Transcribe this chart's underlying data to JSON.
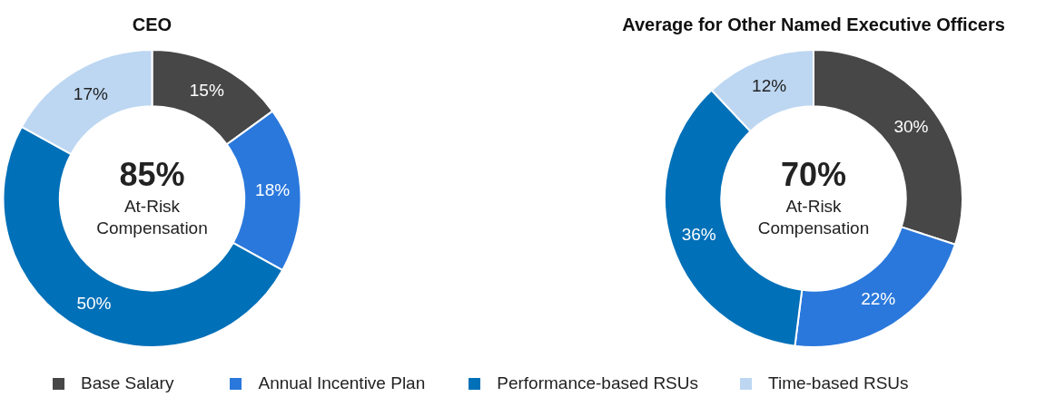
{
  "chart_data": [
    {
      "type": "donut",
      "title": "CEO",
      "categories": [
        "Base Salary",
        "Annual Incentive Plan",
        "Performance-based RSUs",
        "Time-based RSUs"
      ],
      "values": [
        15,
        18,
        50,
        17
      ],
      "value_labels": [
        "15%",
        "18%",
        "50%",
        "17%"
      ],
      "colors": [
        "#474747",
        "#2a78dc",
        "#0070b8",
        "#bdd7f2"
      ],
      "legend": "bottom",
      "annotations": [
        "85%",
        "At-Risk",
        "Compensation"
      ]
    },
    {
      "type": "donut",
      "title": "Average for Other Named Executive Officers",
      "categories": [
        null,
        null,
        null,
        null
      ],
      "values": [
        30,
        22,
        36,
        12
      ],
      "value_labels": [
        "30%",
        "22%",
        "36%",
        "12%"
      ],
      "colors": [
        "#474747",
        "#2a78dc",
        "#0070b8",
        "#bdd7f2"
      ],
      "annotations": [
        "70%",
        "At-Risk",
        "Compensation"
      ]
    }
  ]
}
